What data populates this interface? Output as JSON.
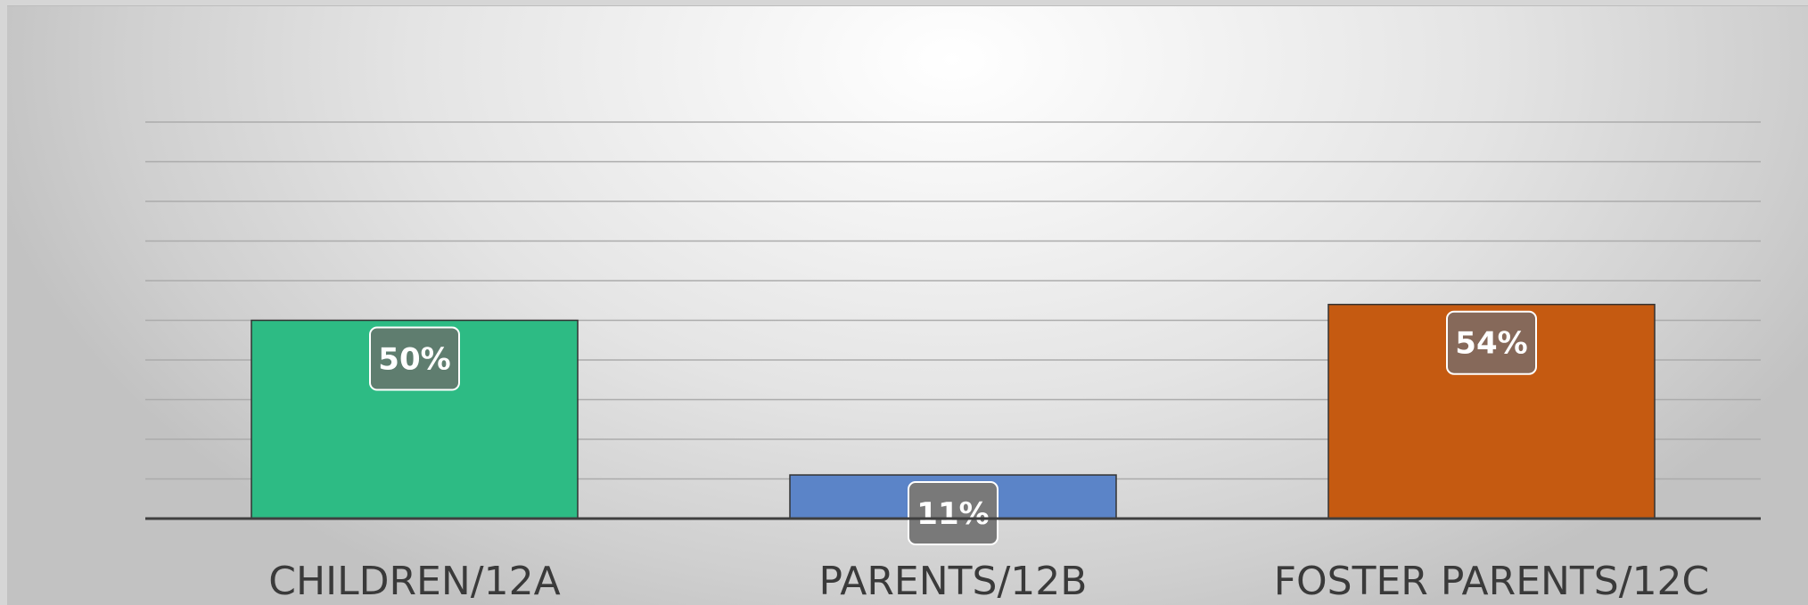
{
  "chart_data": {
    "type": "bar",
    "title": "",
    "xlabel": "",
    "ylabel": "",
    "categories": [
      "CHILDREN/12A",
      "PARENTS/12B",
      "FOSTER PARENTS/12C"
    ],
    "values": [
      50,
      11,
      54
    ],
    "data_labels": [
      "50%",
      "11%",
      "54%"
    ],
    "colors": [
      "#2dbb84",
      "#5b84c8",
      "#c55a11"
    ],
    "label_box_colors": [
      "#5f7d6f",
      "#797979",
      "#86695a"
    ],
    "ylim": [
      0,
      100
    ],
    "grid": true,
    "legend": "none"
  }
}
